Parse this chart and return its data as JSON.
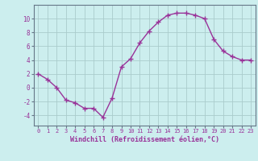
{
  "x": [
    0,
    1,
    2,
    3,
    4,
    5,
    6,
    7,
    8,
    9,
    10,
    11,
    12,
    13,
    14,
    15,
    16,
    17,
    18,
    19,
    20,
    21,
    22,
    23
  ],
  "y": [
    2,
    1.2,
    0,
    -1.8,
    -2.2,
    -3,
    -3,
    -4.3,
    -1.5,
    3,
    4.2,
    6.5,
    8.2,
    9.5,
    10.5,
    10.8,
    10.8,
    10.5,
    10,
    7,
    5.3,
    4.5,
    4,
    4
  ],
  "line_color": "#993399",
  "marker": "+",
  "markersize": 4,
  "linewidth": 1.0,
  "bg_color": "#cceeee",
  "grid_color": "#aacccc",
  "xlabel": "Windchill (Refroidissement éolien,°C)",
  "xlabel_color": "#993399",
  "tick_color": "#993399",
  "yticks": [
    -4,
    -2,
    0,
    2,
    4,
    6,
    8,
    10
  ],
  "ylim": [
    -5.5,
    12.0
  ],
  "xlim": [
    -0.5,
    23.5
  ],
  "xtick_labels": [
    "0",
    "1",
    "2",
    "3",
    "4",
    "5",
    "6",
    "7",
    "8",
    "9",
    "10",
    "11",
    "12",
    "13",
    "14",
    "15",
    "16",
    "17",
    "18",
    "19",
    "20",
    "21",
    "22",
    "23"
  ],
  "tick_fontsize": 5.0,
  "xlabel_fontsize": 6.0,
  "ytick_fontsize": 5.5
}
